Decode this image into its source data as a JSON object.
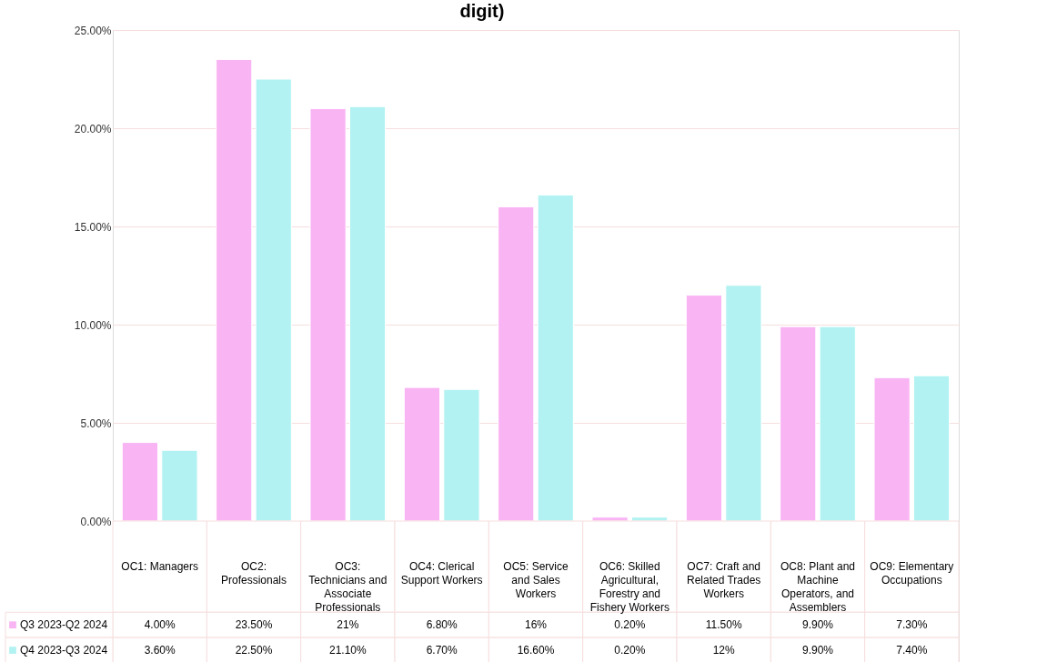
{
  "chart_data": {
    "type": "bar",
    "title": "digit)",
    "categories": [
      "OC1: Managers",
      "OC2: Professionals",
      "OC3: Technicians and Associate Professionals",
      "OC4: Clerical Support Workers",
      "OC5: Service and Sales Workers",
      "OC6: Skilled Agricultural, Forestry and Fishery Workers",
      "OC7: Craft and Related Trades Workers",
      "OC8: Plant and Machine Operators, and Assemblers",
      "OC9: Elementary Occupations"
    ],
    "series": [
      {
        "name": "Q3 2023-Q2 2024",
        "color": "#f9b4f4",
        "values": [
          4.0,
          23.5,
          21,
          6.8,
          16,
          0.2,
          11.5,
          9.9,
          7.3
        ],
        "value_labels": [
          "4.00%",
          "23.50%",
          "21%",
          "6.80%",
          "16%",
          "0.20%",
          "11.50%",
          "9.90%",
          "7.30%"
        ]
      },
      {
        "name": "Q4 2023-Q3 2024",
        "color": "#b2f2f2",
        "values": [
          3.6,
          22.5,
          21.1,
          6.7,
          16.6,
          0.2,
          12,
          9.9,
          7.4
        ],
        "value_labels": [
          "3.60%",
          "22.50%",
          "21.10%",
          "6.70%",
          "16.60%",
          "0.20%",
          "12%",
          "9.90%",
          "7.40%"
        ]
      }
    ],
    "ylim": [
      0,
      25
    ],
    "yticks": [
      {
        "value": 0,
        "label": "0.00%"
      },
      {
        "value": 5,
        "label": "5.00%"
      },
      {
        "value": 10,
        "label": "10.00%"
      },
      {
        "value": 15,
        "label": "15.00%"
      },
      {
        "value": 20,
        "label": "20.00%"
      },
      {
        "value": 25,
        "label": "25.00%"
      }
    ],
    "grid": "y",
    "legend": "bottom"
  }
}
